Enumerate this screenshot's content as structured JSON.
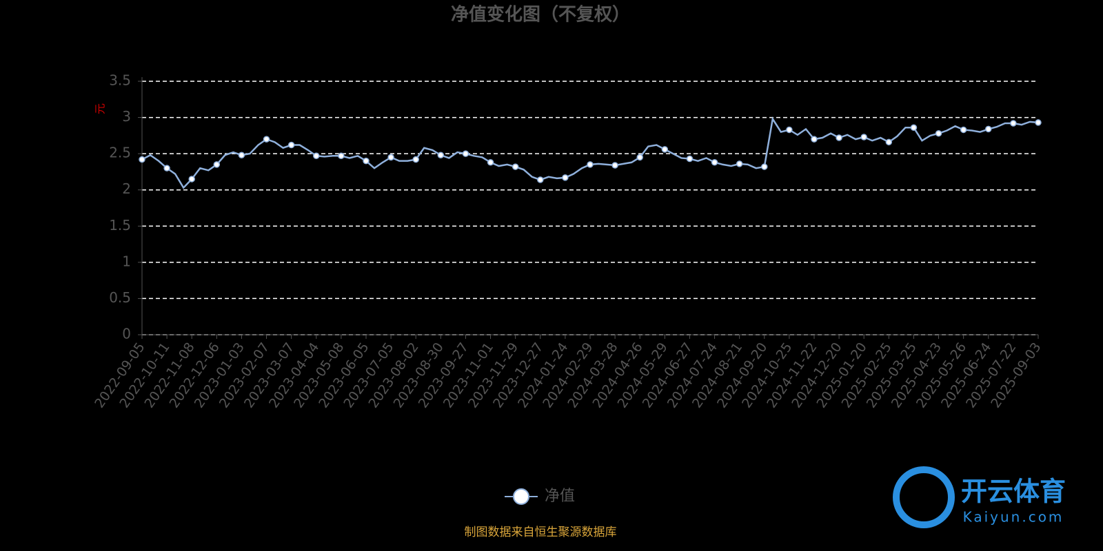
{
  "chart_data": {
    "type": "line",
    "title": "净值变化图（不复权）",
    "y_label": "元",
    "categories": [
      "2022-09-05",
      null,
      null,
      "2022-10-11",
      null,
      null,
      "2022-11-08",
      null,
      null,
      "2022-12-06",
      null,
      null,
      "2023-01-03",
      null,
      null,
      "2023-02-07",
      null,
      null,
      "2023-03-07",
      null,
      null,
      "2023-04-04",
      null,
      null,
      "2023-05-08",
      null,
      null,
      "2023-06-05",
      null,
      null,
      "2023-07-05",
      null,
      null,
      "2023-08-02",
      null,
      null,
      "2023-08-30",
      null,
      null,
      "2023-09-27",
      null,
      null,
      "2023-11-01",
      null,
      null,
      "2023-11-29",
      null,
      null,
      "2023-12-27",
      null,
      null,
      "2024-01-24",
      null,
      null,
      "2024-02-29",
      null,
      null,
      "2024-03-28",
      null,
      null,
      "2024-04-26",
      null,
      null,
      "2024-05-29",
      null,
      null,
      "2024-06-27",
      null,
      null,
      "2024-07-24",
      null,
      null,
      "2024-08-21",
      null,
      null,
      "2024-09-20",
      null,
      null,
      "2024-10-25",
      null,
      null,
      "2024-11-22",
      null,
      null,
      "2024-12-20",
      null,
      null,
      "2025-01-20",
      null,
      null,
      "2025-02-25",
      null,
      null,
      "2025-03-25",
      null,
      null,
      "2025-04-23",
      null,
      null,
      "2025-05-26",
      null,
      null,
      "2025-06-24",
      null,
      null,
      "2025-07-22",
      null,
      null,
      "2025-09-03"
    ],
    "series": [
      {
        "name": "净值",
        "color": "#8fb0dc",
        "values": [
          2.42,
          2.48,
          2.4,
          2.3,
          2.22,
          2.03,
          2.15,
          2.3,
          2.27,
          2.35,
          2.48,
          2.52,
          2.48,
          2.5,
          2.62,
          2.7,
          2.66,
          2.58,
          2.62,
          2.62,
          2.55,
          2.47,
          2.46,
          2.47,
          2.47,
          2.44,
          2.47,
          2.4,
          2.3,
          2.38,
          2.45,
          2.4,
          2.4,
          2.42,
          2.58,
          2.55,
          2.48,
          2.44,
          2.52,
          2.5,
          2.47,
          2.45,
          2.38,
          2.33,
          2.35,
          2.32,
          2.28,
          2.18,
          2.14,
          2.18,
          2.16,
          2.17,
          2.22,
          2.3,
          2.35,
          2.36,
          2.35,
          2.34,
          2.36,
          2.38,
          2.45,
          2.6,
          2.62,
          2.56,
          2.5,
          2.44,
          2.43,
          2.4,
          2.44,
          2.38,
          2.35,
          2.33,
          2.36,
          2.35,
          2.3,
          2.32,
          2.98,
          2.8,
          2.83,
          2.76,
          2.84,
          2.7,
          2.72,
          2.78,
          2.72,
          2.76,
          2.7,
          2.73,
          2.68,
          2.72,
          2.66,
          2.74,
          2.86,
          2.86,
          2.68,
          2.75,
          2.78,
          2.82,
          2.88,
          2.83,
          2.82,
          2.8,
          2.84,
          2.87,
          2.92,
          2.92,
          2.9,
          2.94,
          2.93
        ]
      }
    ],
    "ylim": [
      0,
      3.5
    ],
    "yticks": [
      0,
      0.5,
      1,
      1.5,
      2,
      2.5,
      3,
      3.5
    ],
    "grid": true
  },
  "source": "制图数据来自恒生聚源数据库",
  "watermark": {
    "brand": "开云体育",
    "site": "Kaiyun.com"
  }
}
